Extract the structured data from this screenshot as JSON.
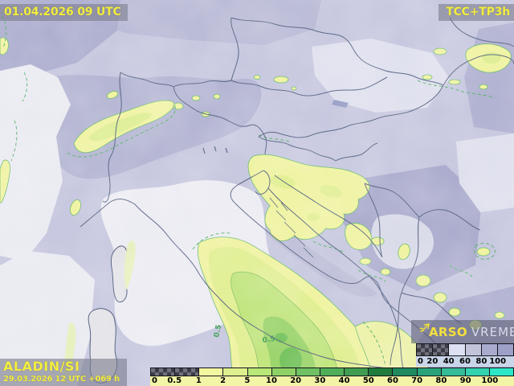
{
  "titles": {
    "valid_time": "01.04.2026 09 UTC",
    "product": "TCC+TP3h",
    "model": "ALADIN/SI",
    "run": "29.03.2026 12 UTC +069 h"
  },
  "branding": {
    "agency": "ARSO",
    "site": "VREME",
    "icon": "weathervane-icon"
  },
  "map": {
    "contour_labels": [
      "0.5",
      "0.5"
    ]
  },
  "colors": {
    "overlay_text": "#f3ee3e",
    "overlay_box": "rgba(124,126,142,0.62)",
    "checker_dark": "#3c3c46",
    "checker_light": "#70707c",
    "border_line": "#4d5b7c",
    "contour_green": "#56b468"
  },
  "legends": {
    "cloud": {
      "labels": [
        "0",
        "20",
        "40",
        "60",
        "80",
        "100"
      ],
      "labels_bg": "#c9d5e9",
      "cells": [
        {
          "checker": true
        },
        {
          "checker": true
        },
        {
          "color": "#dde0f3"
        },
        {
          "color": "#c2c4db"
        },
        {
          "color": "#a9abce"
        },
        {
          "color": "#9da0c7"
        }
      ]
    },
    "precip": {
      "labels": [
        "0",
        "0.5",
        "1",
        "2",
        "5",
        "10",
        "20",
        "30",
        "40",
        "50",
        "60",
        "70",
        "80",
        "90",
        "100"
      ],
      "labels_bg": "#f2f4a6",
      "cells": [
        {
          "checker": true
        },
        {
          "checker": true
        },
        {
          "color": "#f3f7a0"
        },
        {
          "color": "#def08e"
        },
        {
          "color": "#b9e878"
        },
        {
          "color": "#8ed266"
        },
        {
          "color": "#6fc163"
        },
        {
          "color": "#4fae58"
        },
        {
          "color": "#3f9c51"
        },
        {
          "color": "#1f7c3c"
        },
        {
          "color": "#1f8a5e"
        },
        {
          "color": "#28a379"
        },
        {
          "color": "#33bc95"
        },
        {
          "color": "#33d2ae"
        },
        {
          "color": "#2ce7c6"
        }
      ]
    }
  }
}
